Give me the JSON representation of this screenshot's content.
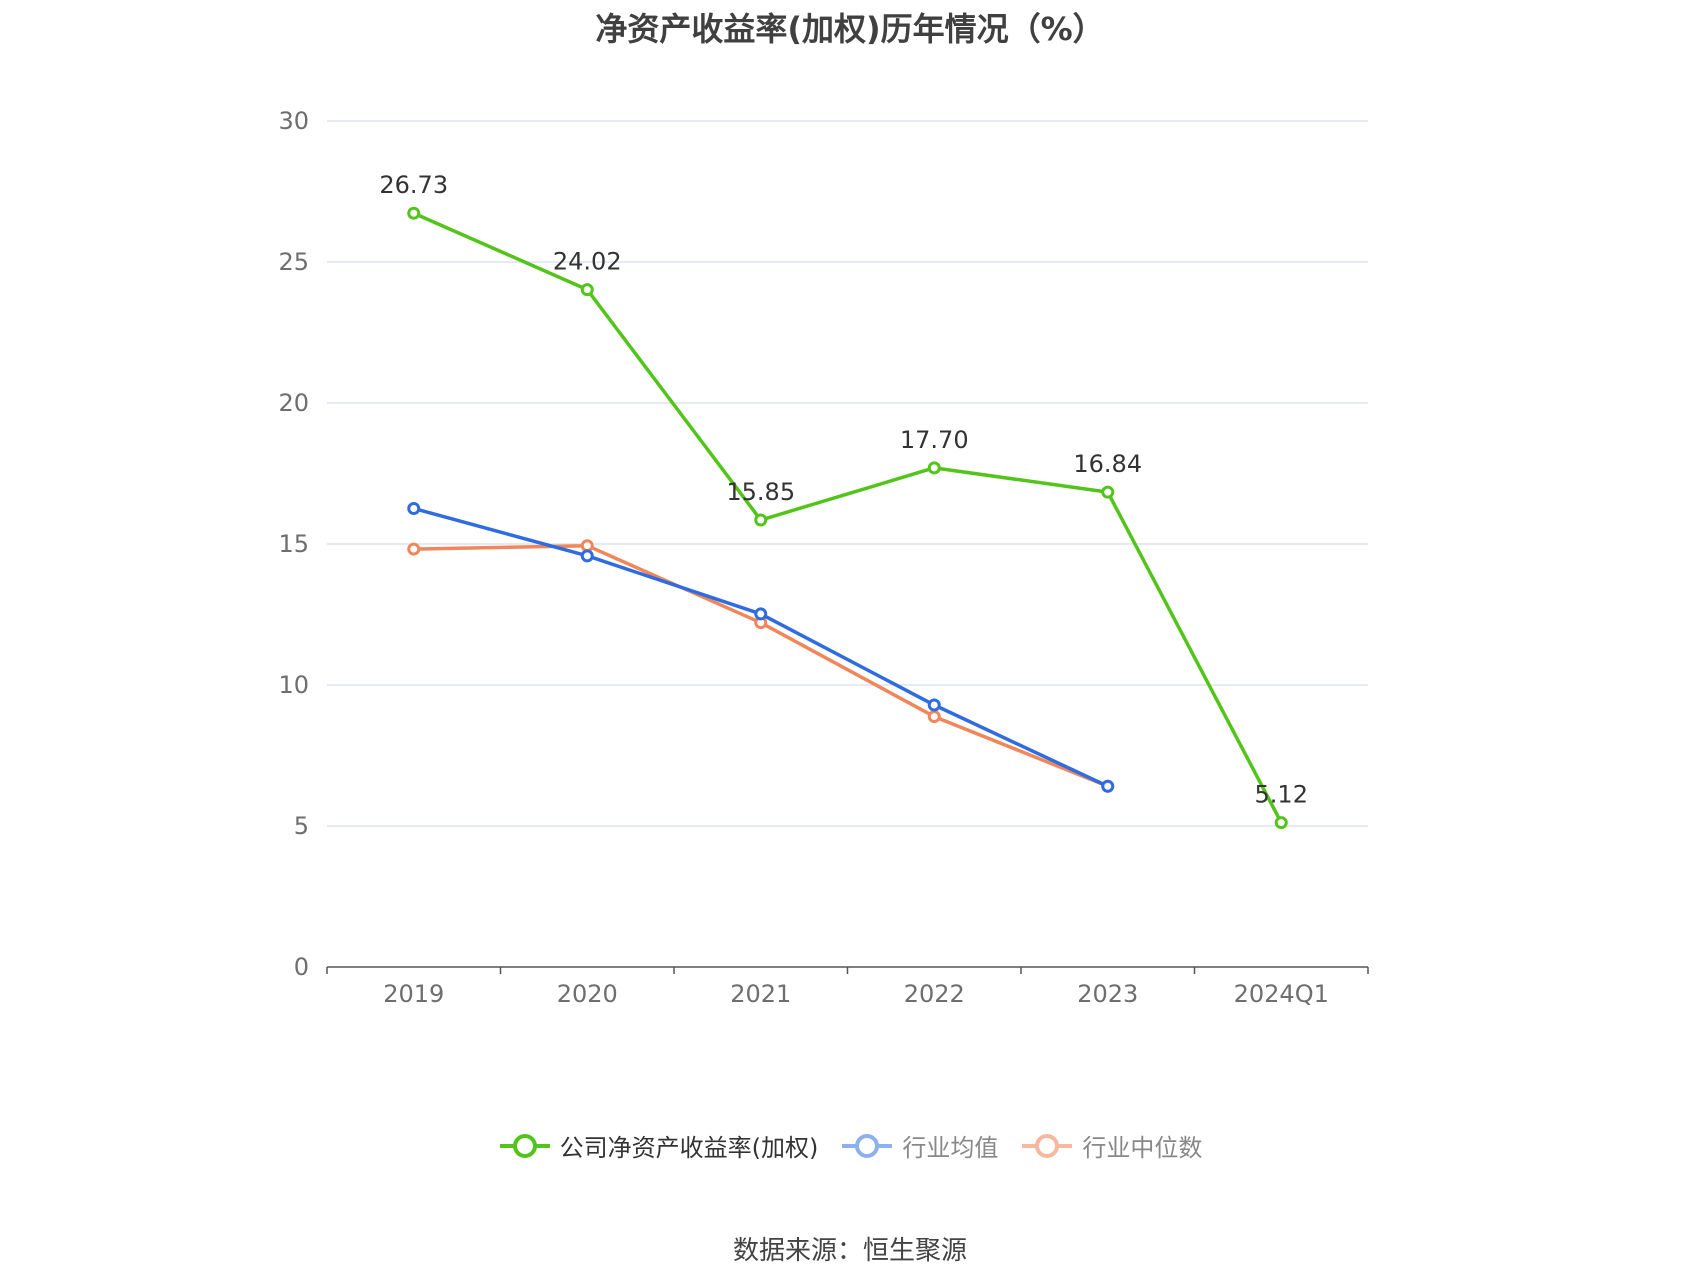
{
  "chart_data": {
    "type": "line",
    "title": "净资产收益率(加权)历年情况（%）",
    "categories": [
      "2019",
      "2020",
      "2021",
      "2022",
      "2023",
      "2024Q1"
    ],
    "ylim": [
      0,
      30
    ],
    "yticks": [
      0,
      5,
      10,
      15,
      20,
      25,
      30
    ],
    "grid": true,
    "legend_position": "bottom",
    "series": [
      {
        "name": "公司净资产收益率(加权)",
        "color": "#52c41a",
        "values": [
          26.73,
          24.02,
          15.85,
          17.7,
          16.84,
          5.12
        ],
        "labels": [
          "26.73",
          "24.02",
          "15.85",
          "17.70",
          "16.84",
          "5.12"
        ],
        "show_labels": true
      },
      {
        "name": "行业均值",
        "color": "#2f6ce0",
        "legend_color": "#8fb0ee",
        "values": [
          16.26,
          14.58,
          12.52,
          9.29,
          6.41,
          null
        ],
        "show_labels": false
      },
      {
        "name": "行业中位数",
        "color": "#f0865a",
        "legend_color": "#f6b9a0",
        "values": [
          14.82,
          14.94,
          12.21,
          8.88,
          6.41,
          null
        ],
        "show_labels": false
      }
    ]
  },
  "source_text": "数据来源：恒生聚源"
}
